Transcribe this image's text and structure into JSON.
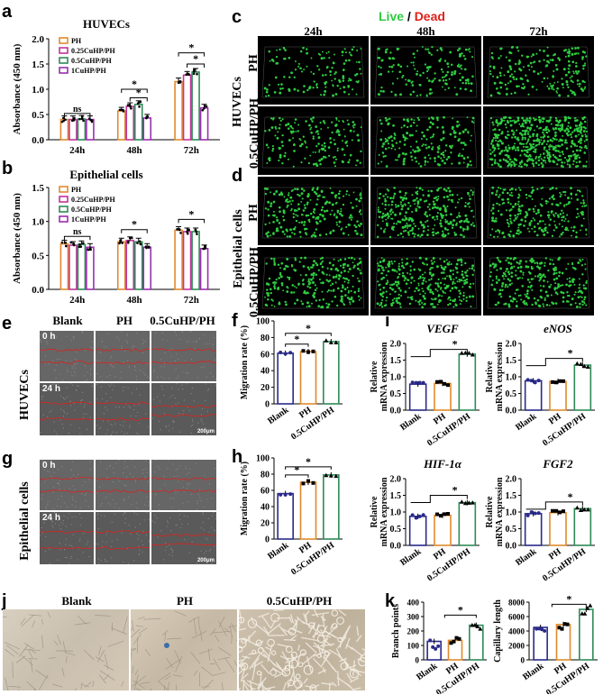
{
  "panels": {
    "a": "a",
    "b": "b",
    "c": "c",
    "d": "d",
    "e": "e",
    "f": "f",
    "g": "g",
    "h": "h",
    "i": "i",
    "j": "j",
    "k": "k"
  },
  "c": {
    "live": "Live",
    "sep": " / ",
    "dead": "Dead",
    "times": [
      "24h",
      "48h",
      "72h"
    ],
    "rows": [
      "PH",
      "0.5CuHP/PH"
    ],
    "group": "HUVECs"
  },
  "d": {
    "rows": [
      "PH",
      "0.5CuHP/PH"
    ],
    "group": "Epithelial cells"
  },
  "e": {
    "cols": [
      "Blank",
      "PH",
      "0.5CuHP/PH"
    ],
    "times": [
      "0 h",
      "24 h"
    ],
    "group": "HUVECs",
    "scale": "200μm"
  },
  "g": {
    "times": [
      "0 h",
      "24 h"
    ],
    "group": "Epithelial cells",
    "scale": "200μm"
  },
  "j": {
    "cols": [
      "Blank",
      "PH",
      "0.5CuHP/PH"
    ]
  },
  "colors": {
    "PH": "#e08a2c",
    "0.25CuHP/PH": "#c0359a",
    "0.5CuHP/PH": "#2e8b57",
    "1CuHP/PH": "#9b2fae",
    "Blank": "#2a2a8a",
    "live": "#2ecc40",
    "dead": "#e0201b"
  },
  "chart_data": [
    {
      "id": "a",
      "type": "bar",
      "title": "HUVECs",
      "ylabel": "Absorbance (450 nm)",
      "ylim": [
        0,
        2.0
      ],
      "yticks": [
        "0.0",
        "0.5",
        "1.0",
        "1.5",
        "2.0"
      ],
      "categories": [
        "24h",
        "48h",
        "72h"
      ],
      "legend": "top-left",
      "series": [
        {
          "name": "PH",
          "values": [
            0.4,
            0.57,
            1.15
          ]
        },
        {
          "name": "0.25CuHP/PH",
          "values": [
            0.4,
            0.66,
            1.28
          ]
        },
        {
          "name": "0.5CuHP/PH",
          "values": [
            0.41,
            0.7,
            1.34
          ]
        },
        {
          "name": "1CuHP/PH",
          "values": [
            0.4,
            0.43,
            0.63
          ]
        }
      ],
      "annotations": [
        "ns",
        "*",
        "*",
        "*",
        "*"
      ]
    },
    {
      "id": "b",
      "type": "bar",
      "title": "Epithelial cells",
      "ylabel": "Absorbance (450 nm)",
      "ylim": [
        0,
        1.5
      ],
      "yticks": [
        "0.0",
        "0.5",
        "1.0",
        "1.5"
      ],
      "categories": [
        "24h",
        "48h",
        "72h"
      ],
      "legend": "top-left",
      "series": [
        {
          "name": "PH",
          "values": [
            0.67,
            0.7,
            0.87
          ]
        },
        {
          "name": "0.25CuHP/PH",
          "values": [
            0.65,
            0.72,
            0.85
          ]
        },
        {
          "name": "0.5CuHP/PH",
          "values": [
            0.66,
            0.7,
            0.85
          ]
        },
        {
          "name": "1CuHP/PH",
          "values": [
            0.62,
            0.62,
            0.6
          ]
        }
      ],
      "annotations": [
        "ns",
        "*",
        "*"
      ]
    },
    {
      "id": "f",
      "type": "bar",
      "ylabel": "Migration rate (%)",
      "ylim": [
        0,
        100
      ],
      "yticks": [
        "0",
        "20",
        "40",
        "60",
        "80",
        "100"
      ],
      "categories": [
        "Blank",
        "PH",
        "0.5CuHP/PH"
      ],
      "values": [
        61,
        63,
        75
      ],
      "annotations": [
        "*",
        "*"
      ]
    },
    {
      "id": "h",
      "type": "bar",
      "ylabel": "Migration rate (%)",
      "ylim": [
        0,
        100
      ],
      "yticks": [
        "0",
        "20",
        "40",
        "60",
        "80",
        "100"
      ],
      "categories": [
        "Blank",
        "PH",
        "0.5CuHP/PH"
      ],
      "values": [
        56,
        70,
        79
      ],
      "annotations": [
        "*",
        "*"
      ]
    },
    {
      "id": "i1",
      "type": "bar",
      "title": "VEGF",
      "ylabel": "Relative mRNA expression",
      "ylim": [
        0,
        2.0
      ],
      "yticks": [
        "0.0",
        "0.5",
        "1.0",
        "1.5",
        "2.0"
      ],
      "categories": [
        "Blank",
        "PH",
        "0.5CuHP/PH"
      ],
      "values": [
        0.78,
        0.8,
        1.68
      ],
      "annotations": [
        "*"
      ]
    },
    {
      "id": "i2",
      "type": "bar",
      "title": "eNOS",
      "ylabel": "Relative mRNA expression",
      "ylim": [
        0,
        2.0
      ],
      "yticks": [
        "0.0",
        "0.5",
        "1.0",
        "1.5",
        "2.0"
      ],
      "categories": [
        "Blank",
        "PH",
        "0.5CuHP/PH"
      ],
      "values": [
        0.88,
        0.86,
        1.35
      ],
      "annotations": [
        "*"
      ]
    },
    {
      "id": "i3",
      "type": "bar",
      "title": "HIF-1α",
      "ylabel": "Relative mRNA expression",
      "ylim": [
        0,
        2.0
      ],
      "yticks": [
        "0.0",
        "0.5",
        "1.0",
        "1.5",
        "2.0"
      ],
      "categories": [
        "Blank",
        "PH",
        "0.5CuHP/PH"
      ],
      "values": [
        0.87,
        0.9,
        1.28
      ],
      "annotations": [
        "*"
      ]
    },
    {
      "id": "i4",
      "type": "bar",
      "title": "FGF2",
      "ylabel": "Relative mRNA expression",
      "ylim": [
        0,
        2.0
      ],
      "yticks": [
        "0.0",
        "0.5",
        "1.0",
        "1.5",
        "2.0"
      ],
      "categories": [
        "Blank",
        "PH",
        "0.5CuHP/PH"
      ],
      "values": [
        0.95,
        0.98,
        1.1
      ],
      "annotations": [
        "*"
      ]
    },
    {
      "id": "k1",
      "type": "bar",
      "ylabel": "Branch points",
      "ylim": [
        0,
        400
      ],
      "yticks": [
        "0",
        "100",
        "200",
        "300",
        "400"
      ],
      "categories": [
        "Blank",
        "PH",
        "0.5CuHP/PH"
      ],
      "values": [
        128,
        135,
        240
      ],
      "annotations": [
        "*"
      ]
    },
    {
      "id": "k2",
      "type": "bar",
      "ylabel": "Capillary length",
      "ylim": [
        0,
        8000
      ],
      "yticks": [
        "0",
        "2000",
        "4000",
        "6000",
        "8000"
      ],
      "categories": [
        "Blank",
        "PH",
        "0.5CuHP/PH"
      ],
      "values": [
        4500,
        4900,
        7000
      ],
      "annotations": [
        "*"
      ]
    }
  ]
}
